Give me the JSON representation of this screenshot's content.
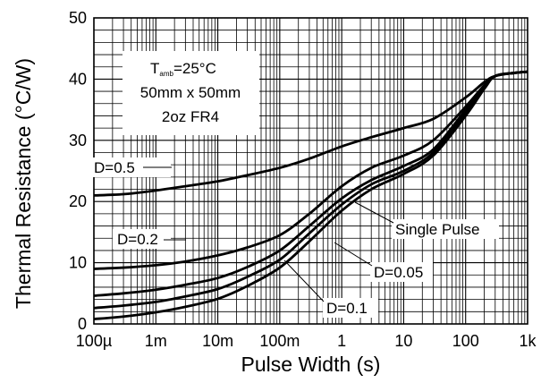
{
  "chart_data": {
    "type": "line",
    "xlabel": "Pulse Width (s)",
    "ylabel": "Thermal Resistance (°C/W)",
    "x_scale": "log",
    "xlim": [
      0.0001,
      1000
    ],
    "ylim": [
      0,
      50
    ],
    "grid": true,
    "x_tick_labels": [
      "100µ",
      "1m",
      "10m",
      "100m",
      "1",
      "10",
      "100",
      "1k"
    ],
    "x_tick_values": [
      0.0001,
      0.001,
      0.01,
      0.1,
      1,
      10,
      100,
      1000
    ],
    "y_ticks": [
      0,
      10,
      20,
      30,
      40,
      50
    ],
    "conditions": {
      "t_symbol": "T",
      "t_subscript": "amb",
      "t_value": "=25°C",
      "board_size": "50mm x 50mm",
      "board": "2oz FR4"
    },
    "series": [
      {
        "name": "D=0.5",
        "x": [
          0.0001,
          0.0003,
          0.001,
          0.003,
          0.01,
          0.03,
          0.1,
          0.3,
          1,
          3,
          10,
          30,
          100,
          200,
          300,
          600,
          1000
        ],
        "y": [
          21,
          21.2,
          21.8,
          22.5,
          23.3,
          24.3,
          25.5,
          27,
          29,
          30.5,
          32,
          33.5,
          37,
          39.5,
          40.5,
          41,
          41.2
        ]
      },
      {
        "name": "D=0.2",
        "x": [
          0.0001,
          0.0003,
          0.001,
          0.003,
          0.01,
          0.03,
          0.1,
          0.3,
          1,
          3,
          10,
          30,
          100,
          200,
          300,
          600,
          1000
        ],
        "y": [
          9,
          9.2,
          9.6,
          10.2,
          11.2,
          12.5,
          14.5,
          18,
          22.5,
          25.5,
          27.5,
          30,
          35.5,
          39,
          40.5,
          41,
          41.2
        ]
      },
      {
        "name": "Single Pulse",
        "x": [
          0.0001,
          0.0003,
          0.001,
          0.003,
          0.01,
          0.03,
          0.1,
          0.3,
          1,
          3,
          10,
          30,
          100,
          200,
          300,
          600,
          1000
        ],
        "y": [
          4.6,
          5,
          5.6,
          6.4,
          7.5,
          9.3,
          12,
          16,
          20.5,
          23.5,
          25.8,
          28.5,
          35,
          38.8,
          40.5,
          41,
          41.2
        ]
      },
      {
        "name": "D=0.05",
        "x": [
          0.0001,
          0.0003,
          0.001,
          0.003,
          0.01,
          0.03,
          0.1,
          0.3,
          1,
          3,
          10,
          30,
          100,
          200,
          300,
          600,
          1000
        ],
        "y": [
          2.6,
          3,
          3.6,
          4.5,
          5.7,
          7.7,
          10.5,
          14.8,
          19.5,
          22.8,
          25,
          28,
          34.5,
          38.6,
          40.5,
          41,
          41.2
        ]
      },
      {
        "name": "D=0.1",
        "x": [
          0.0001,
          0.0003,
          0.001,
          0.003,
          0.01,
          0.03,
          0.1,
          0.3,
          1,
          3,
          10,
          30,
          100,
          200,
          300,
          600,
          1000
        ],
        "y": [
          0.8,
          1.2,
          1.9,
          2.8,
          4.1,
          6.2,
          9.2,
          13.5,
          18.5,
          22,
          24.5,
          27.5,
          34,
          38.4,
          40.5,
          41,
          41.2
        ]
      }
    ],
    "annotations": [
      {
        "text": "D=0.5",
        "series": "D=0.5"
      },
      {
        "text": "D=0.2",
        "series": "D=0.2"
      },
      {
        "text": "Single Pulse",
        "series": "Single Pulse"
      },
      {
        "text": "D=0.05",
        "series": "D=0.05"
      },
      {
        "text": "D=0.1",
        "series": "D=0.1"
      }
    ],
    "colors": {
      "line": "#000000",
      "grid": "#000000",
      "background": "#ffffff"
    }
  }
}
